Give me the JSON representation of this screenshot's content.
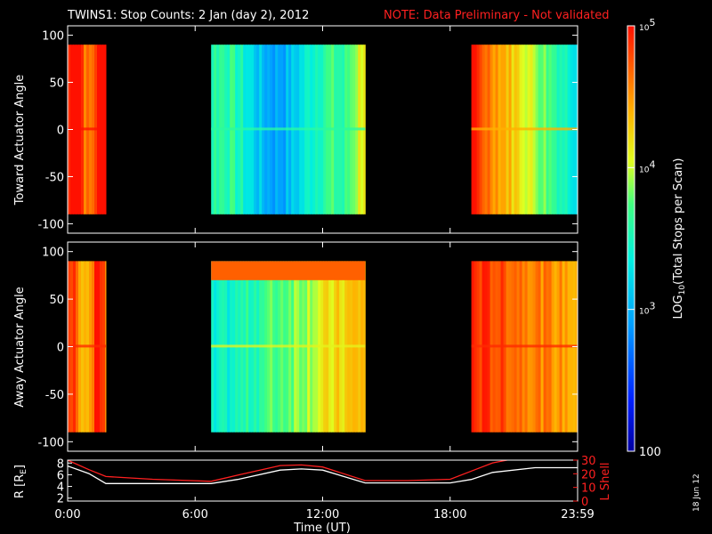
{
  "title": {
    "main": "TWINS1: Stop Counts:  2 Jan (day   2), 2012",
    "note": "NOTE: Data Preliminary - Not validated",
    "note_color": "#ff2020"
  },
  "panels": [
    {
      "ylabel": "Toward Actuator Angle"
    },
    {
      "ylabel": "Away Actuator Angle"
    }
  ],
  "orbit_panel": {
    "ylabel_left": "R [R",
    "ylabel_left_sub": "E",
    "ylabel_left_end": "]",
    "ylabel_right": "L Shell",
    "left_ticks": [
      "8",
      "6",
      "4",
      "2"
    ],
    "right_ticks": [
      "30",
      "20",
      "10",
      "0"
    ]
  },
  "colorbar": {
    "label": "LOG",
    "label_sub": "10",
    "label_rest": "(Total Stops per Scan)",
    "ticks": [
      {
        "base": "10",
        "exp": "5"
      },
      {
        "base": "10",
        "exp": "4"
      },
      {
        "base": "10",
        "exp": "3"
      },
      {
        "base": "100",
        "exp": ""
      }
    ]
  },
  "xlabel": "Time (UT)",
  "date_stamp": "18 Jun 12",
  "chart_data": [
    {
      "type": "heatmap",
      "ylabel": "Toward Actuator Angle",
      "xlim": [
        0,
        24
      ],
      "ylim": [
        -110,
        110
      ],
      "yticks": [
        100,
        50,
        0,
        -50,
        -100
      ],
      "xticks": [
        "0:00",
        "6:00",
        "12:00",
        "18:00",
        "23:59"
      ],
      "clim": [
        100,
        100000
      ],
      "scale": "log",
      "angle_range": [
        -90,
        90
      ],
      "data_intervals": [
        {
          "start": 0.0,
          "end": 1.8,
          "level": 4.9
        },
        {
          "start": 6.75,
          "end": 14.0,
          "level": 3.3
        },
        {
          "start": 19.0,
          "end": 24.0,
          "level": 4.1
        }
      ]
    },
    {
      "type": "heatmap",
      "ylabel": "Away Actuator Angle",
      "xlim": [
        0,
        24
      ],
      "ylim": [
        -110,
        110
      ],
      "yticks": [
        100,
        50,
        0,
        -50,
        -100
      ],
      "xticks": [
        "0:00",
        "6:00",
        "12:00",
        "18:00",
        "23:59"
      ],
      "clim": [
        100,
        100000
      ],
      "scale": "log",
      "angle_range": [
        -90,
        90
      ],
      "data_intervals": [
        {
          "start": 0.0,
          "end": 1.8,
          "level": 4.6
        },
        {
          "start": 6.75,
          "end": 14.0,
          "level": 3.8
        },
        {
          "start": 19.0,
          "end": 24.0,
          "level": 4.6
        }
      ]
    },
    {
      "type": "line",
      "xlim": [
        0,
        24
      ],
      "ylim_left": [
        1.5,
        8.5
      ],
      "ylim_right": [
        0,
        30
      ],
      "series": [
        {
          "name": "R",
          "color": "#ffffff",
          "x": [
            0,
            1,
            1.8,
            4,
            6.75,
            8,
            10,
            11,
            12,
            14,
            16,
            18,
            19,
            20,
            22,
            24
          ],
          "y": [
            7.5,
            6.2,
            4.5,
            4.5,
            4.5,
            5.2,
            6.8,
            7.0,
            6.8,
            4.6,
            4.6,
            4.6,
            5.2,
            6.4,
            7.2,
            7.2
          ]
        },
        {
          "name": "L Shell",
          "color": "#ff2020",
          "x": [
            0,
            1,
            1.8,
            4,
            6.75,
            8,
            10,
            11,
            12,
            14,
            16,
            18,
            19,
            20,
            21
          ],
          "y": [
            30,
            23,
            18,
            16,
            14.5,
            19,
            26,
            26.5,
            25,
            15,
            15,
            16,
            22,
            28,
            31
          ]
        }
      ]
    }
  ]
}
